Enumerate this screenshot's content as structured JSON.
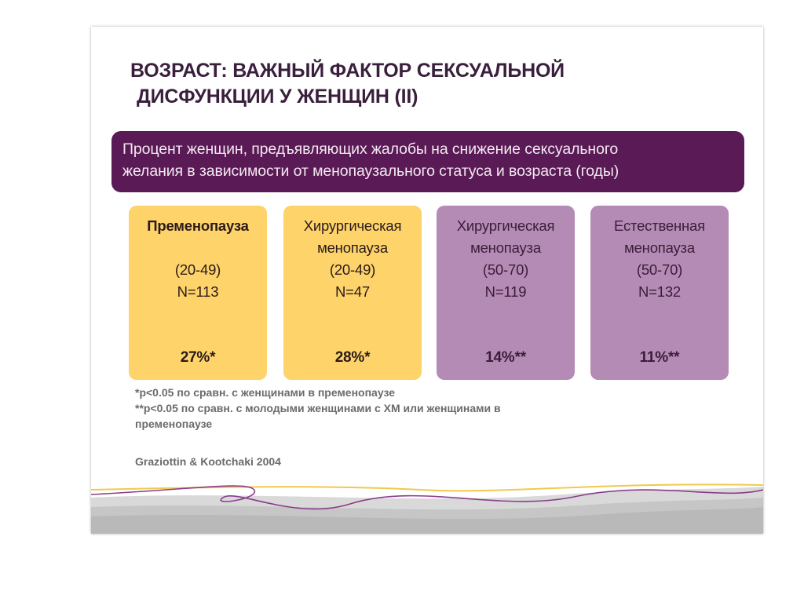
{
  "slide": {
    "title_line1": "ВОЗРАСТ: ВАЖНЫЙ ФАКТОР СЕКСУАЛЬНОЙ",
    "title_line2": "ДИСФУНКЦИИ У ЖЕНЩИН (II)",
    "banner_line1": "Процент женщин, предъявляющих жалобы на снижение сексуального",
    "banner_line2": "желания в зависимости от менопаузального статуса и возраста (годы)",
    "cards": [
      {
        "lines": [
          "Пременопауза",
          "",
          "(20-49)",
          "N=113"
        ],
        "percent": "27%*"
      },
      {
        "lines": [
          "Хирургическая",
          "менопауза",
          "(20-49)",
          "N=47"
        ],
        "percent": "28%*"
      },
      {
        "lines": [
          "Хирургическая",
          "менопауза",
          "(50-70)",
          "N=119"
        ],
        "percent": "14%**"
      },
      {
        "lines": [
          "Естественная",
          "менопауза",
          "(50-70)",
          "N=132"
        ],
        "percent": "11%**"
      }
    ],
    "note1": "*p<0.05  по сравн. с женщинами в пременопаузе",
    "note2": "**p<0.05 по сравн. с молодыми женщинами с ХМ или женщинами в",
    "note3": "пременопаузе",
    "citation": "Graziottin & Kootchaki  2004"
  },
  "colors": {
    "banner": "#5a1a55",
    "card_yellow": "#fdd36a",
    "card_purple": "#b48bb4",
    "title": "#3a1f3d"
  }
}
